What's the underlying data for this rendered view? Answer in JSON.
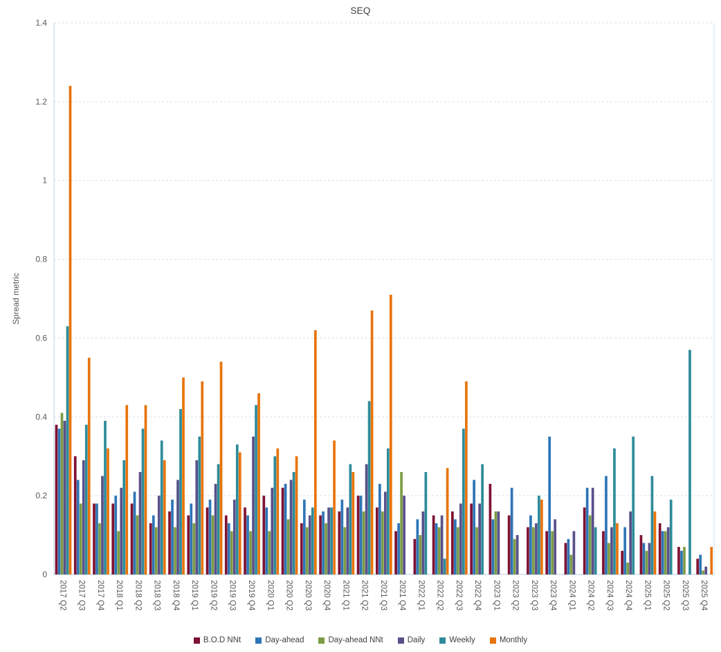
{
  "title": "SEQ",
  "y_axis": {
    "title": "Spread metric",
    "ticks": [
      "0",
      "0.2",
      "0.4",
      "0.6",
      "0.8",
      "1",
      "1.2",
      "1.4"
    ]
  },
  "colors": {
    "background": "#ffffff",
    "title_text": "#404040",
    "axis_text": "#595959",
    "gridline": "#cfe0f2",
    "axis_line": "#c3d6e8",
    "series_bod_nnt": "#7e1233",
    "series_day_ahead": "#2e75b6",
    "series_day_ahead_nnt": "#7d9c45",
    "series_daily": "#585089",
    "series_weekly": "#2e8b99",
    "series_monthly": "#e8740c"
  },
  "chart_data": {
    "type": "bar",
    "title": "SEQ",
    "xlabel": "",
    "ylabel": "Spread metric",
    "ylim": [
      0,
      1.4
    ],
    "grid": "horizontal dashed",
    "legend_position": "bottom-center",
    "categories": [
      "2017 Q2",
      "2017 Q3",
      "2017 Q4",
      "2018 Q1",
      "2018 Q2",
      "2018 Q3",
      "2018 Q4",
      "2019 Q1",
      "2019 Q2",
      "2019 Q3",
      "2019 Q4",
      "2020 Q1",
      "2020 Q2",
      "2020 Q3",
      "2020 Q4",
      "2021 Q1",
      "2021 Q2",
      "2021 Q3",
      "2021 Q4",
      "2022 Q1",
      "2022 Q2",
      "2022 Q3",
      "2022 Q4",
      "2023 Q1",
      "2023 Q2",
      "2023 Q3",
      "2023 Q4",
      "2024 Q1",
      "2024 Q2",
      "2024 Q3",
      "2024 Q4",
      "2025 Q1",
      "2025 Q2",
      "2025 Q3",
      "2025 Q4"
    ],
    "series": [
      {
        "name": "B.O.D NNt",
        "color": "#7e1233",
        "values": [
          0.38,
          0.3,
          0.18,
          0.18,
          0.18,
          0.13,
          0.16,
          0.15,
          0.17,
          0.15,
          0.17,
          0.2,
          0.22,
          0.13,
          0.15,
          0.16,
          0.2,
          0.17,
          0.11,
          0.09,
          0.15,
          0.16,
          0.18,
          0.23,
          0.15,
          0.12,
          0.11,
          0.08,
          0.17,
          0.11,
          0.06,
          0.1,
          0.13,
          0.07,
          0.04
        ]
      },
      {
        "name": "Day-ahead",
        "color": "#2e75b6",
        "values": [
          0.37,
          0.24,
          0.18,
          0.2,
          0.21,
          0.15,
          0.19,
          0.18,
          0.19,
          0.13,
          0.15,
          0.17,
          0.23,
          0.19,
          0.16,
          0.19,
          0.2,
          0.23,
          0.13,
          0.14,
          0.13,
          0.14,
          0.24,
          0.14,
          0.22,
          0.15,
          0.35,
          0.09,
          0.22,
          0.25,
          0.12,
          0.08,
          0.11,
          0.06,
          0.05
        ]
      },
      {
        "name": "Day-ahead NNt",
        "color": "#7d9c45",
        "values": [
          0.41,
          0.18,
          0.13,
          0.11,
          0.15,
          0.12,
          0.12,
          0.13,
          0.15,
          0.11,
          0.11,
          0.11,
          0.14,
          0.12,
          0.13,
          0.12,
          0.16,
          0.16,
          0.26,
          0.1,
          0.12,
          0.12,
          0.12,
          0.16,
          0.09,
          0.12,
          0.11,
          0.05,
          0.15,
          0.08,
          0.03,
          0.06,
          0.11,
          0.07,
          0.01
        ]
      },
      {
        "name": "Daily",
        "color": "#585089",
        "values": [
          0.39,
          0.29,
          0.25,
          0.22,
          0.26,
          0.2,
          0.24,
          0.29,
          0.23,
          0.19,
          0.35,
          0.22,
          0.24,
          0.15,
          0.17,
          0.17,
          0.28,
          0.21,
          0.2,
          0.16,
          0.15,
          0.18,
          0.18,
          0.16,
          0.1,
          0.13,
          0.14,
          0.11,
          0.22,
          0.12,
          0.16,
          0.08,
          0.12,
          0,
          0.02
        ]
      },
      {
        "name": "Weekly",
        "color": "#2e8b99",
        "values": [
          0.63,
          0.38,
          0.39,
          0.29,
          0.37,
          0.34,
          0.42,
          0.35,
          0.28,
          0.33,
          0.43,
          0.3,
          0.26,
          0.17,
          0.17,
          0.28,
          0.44,
          0.32,
          0,
          0.26,
          0.04,
          0.37,
          0.28,
          0,
          0,
          0.2,
          0,
          0,
          0.12,
          0.32,
          0.35,
          0.25,
          0.19,
          0.57,
          0
        ]
      },
      {
        "name": "Monthly",
        "color": "#e8740c",
        "values": [
          1.24,
          0.55,
          0.32,
          0.43,
          0.43,
          0.29,
          0.5,
          0.49,
          0.54,
          0.31,
          0.46,
          0.32,
          0.3,
          0.62,
          0.34,
          0.26,
          0.67,
          0.71,
          0,
          0,
          0.27,
          0.49,
          0,
          0,
          0,
          0.19,
          0,
          0,
          0,
          0.13,
          0,
          0.16,
          0,
          0,
          0.07
        ]
      }
    ]
  }
}
